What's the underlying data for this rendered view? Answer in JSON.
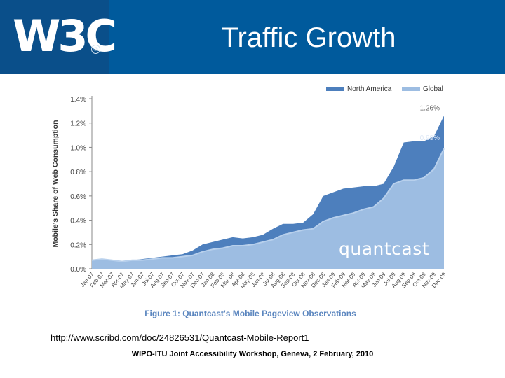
{
  "header": {
    "logo_text": "W3C",
    "logo_mark": "®",
    "title": "Traffic Growth"
  },
  "chart_data": {
    "type": "area",
    "title": "Figure 1: Quantcast's Mobile Pageview Observations",
    "ylabel": "Mobile's Share of Web Consumption",
    "xlabel": "",
    "ylim": [
      0,
      1.4
    ],
    "y_ticks": [
      "0.0%",
      "0.2%",
      "0.4%",
      "0.6%",
      "0.8%",
      "1.0%",
      "1.2%",
      "1.4%"
    ],
    "grid": false,
    "legend_position": "top-right",
    "watermark": "quantcast",
    "categories": [
      "Jan-07",
      "Feb-07",
      "Mar-07",
      "Apr-07",
      "May-07",
      "Jun-07",
      "Jul-07",
      "Aug-07",
      "Sep-07",
      "Oct-07",
      "Nov-07",
      "Dec-07",
      "Jan-08",
      "Feb-08",
      "Mar-08",
      "Apr-08",
      "May-08",
      "Jun-08",
      "Jul-08",
      "Aug-08",
      "Sep-08",
      "Oct-08",
      "Nov-08",
      "Dec-08",
      "Jan-09",
      "Feb-09",
      "Mar-09",
      "Apr-09",
      "May-09",
      "Jun-09",
      "Jul-09",
      "Aug-09",
      "Sep-09",
      "Oct-09",
      "Nov-09",
      "Dec-09"
    ],
    "series": [
      {
        "name": "North America",
        "color": "#4d7fbd",
        "values": [
          0.07,
          0.07,
          0.07,
          0.06,
          0.07,
          0.08,
          0.09,
          0.1,
          0.11,
          0.12,
          0.15,
          0.2,
          0.22,
          0.24,
          0.26,
          0.25,
          0.26,
          0.28,
          0.33,
          0.37,
          0.37,
          0.38,
          0.45,
          0.6,
          0.63,
          0.66,
          0.67,
          0.68,
          0.68,
          0.7,
          0.84,
          1.04,
          1.05,
          1.05,
          1.09,
          1.26
        ],
        "end_label": "1.26%"
      },
      {
        "name": "Global",
        "color": "#9dbde2",
        "values": [
          0.07,
          0.08,
          0.07,
          0.06,
          0.07,
          0.07,
          0.08,
          0.09,
          0.09,
          0.1,
          0.11,
          0.14,
          0.16,
          0.17,
          0.19,
          0.19,
          0.2,
          0.22,
          0.24,
          0.28,
          0.3,
          0.32,
          0.33,
          0.39,
          0.42,
          0.44,
          0.46,
          0.49,
          0.51,
          0.58,
          0.7,
          0.73,
          0.73,
          0.75,
          0.82,
          0.99
        ],
        "end_label": "0.99%"
      }
    ]
  },
  "source_url": "http://www.scribd.com/doc/24826531/Quantcast-Mobile-Report1",
  "footer_text": "WIPO-ITU Joint Accessibility Workshop, Geneva, 2 February, 2010"
}
